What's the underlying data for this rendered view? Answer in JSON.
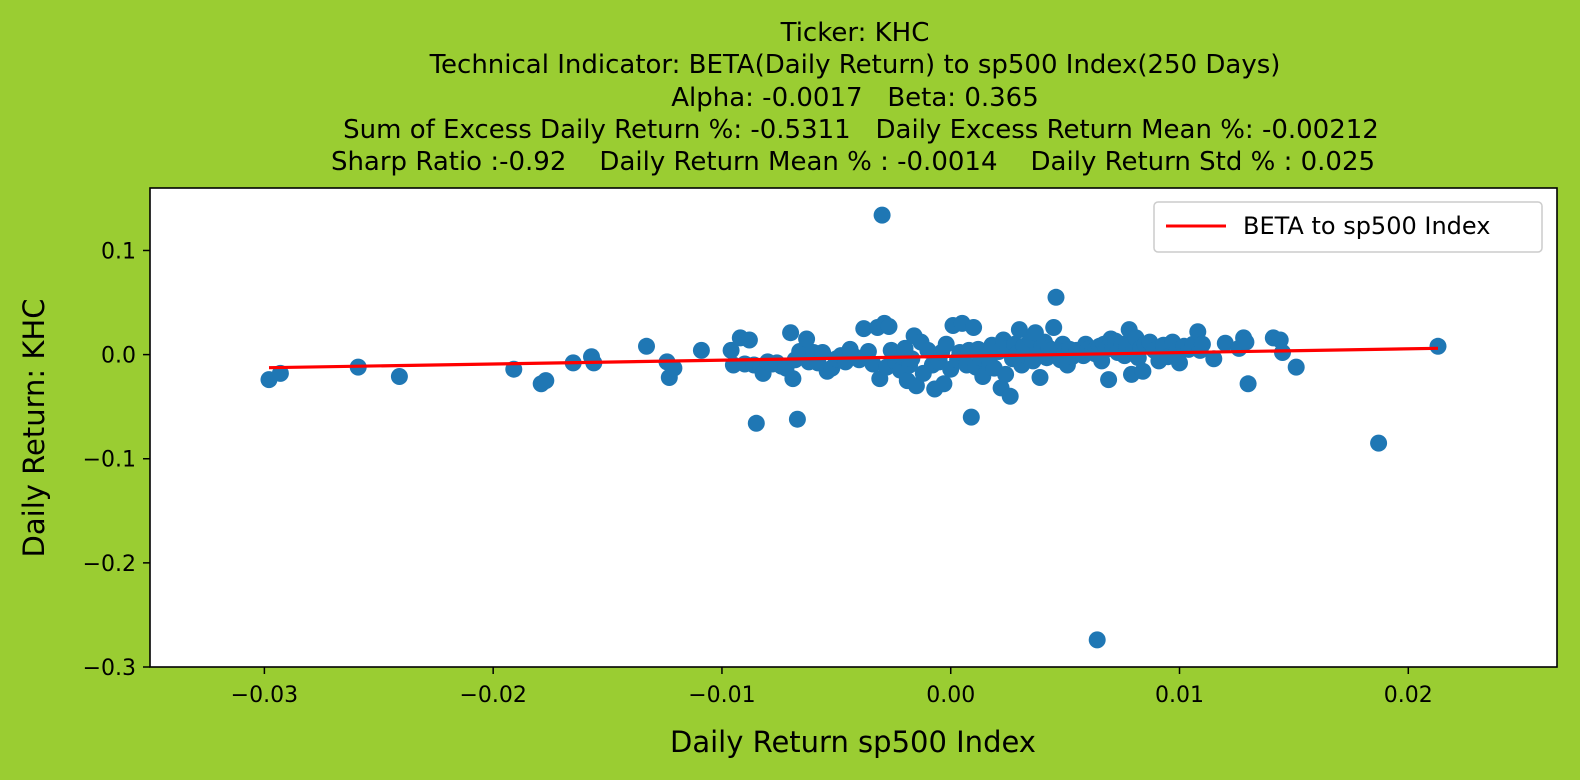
{
  "chart_data": {
    "type": "scatter",
    "title_lines": [
      "Ticker: KHC",
      "Technical Indicator: BETA(Daily Return) to sp500 Index(250 Days)",
      "Alpha: -0.0017   Beta: 0.365",
      "Sum of Excess Daily Return %: -0.5311   Daily Excess Return Mean %: -0.00212",
      "Sharp Ratio :-0.92    Daily Return Mean % : -0.0014    Daily Return Std % : 0.025"
    ],
    "xlabel": "Daily Return sp500 Index",
    "ylabel": "Daily Return: KHC",
    "xlim": [
      -0.035,
      0.0265
    ],
    "ylim": [
      -0.3,
      0.16
    ],
    "x_ticks": [
      -0.03,
      -0.02,
      -0.01,
      0.0,
      0.01,
      0.02
    ],
    "x_tick_labels": [
      "−0.03",
      "−0.02",
      "−0.01",
      "0.00",
      "0.01",
      "0.02"
    ],
    "y_ticks": [
      0.1,
      0.0,
      -0.1,
      -0.2,
      -0.3
    ],
    "y_tick_labels": [
      "0.1",
      "0.0",
      "−0.1",
      "−0.2",
      "−0.3"
    ],
    "grid": false,
    "legend_position": "top-right",
    "colors": {
      "background": "#9acd32",
      "points": "#1f77b4",
      "line": "#ff0000",
      "plot_bg": "#ffffff"
    },
    "series": [
      {
        "type": "scatter",
        "points": [
          [
            -0.0298,
            -0.024
          ],
          [
            -0.0293,
            -0.018
          ],
          [
            -0.0259,
            -0.012
          ],
          [
            -0.0241,
            -0.021
          ],
          [
            -0.0191,
            -0.014
          ],
          [
            -0.0179,
            -0.028
          ],
          [
            -0.0177,
            -0.025
          ],
          [
            -0.0165,
            -0.008
          ],
          [
            -0.0157,
            -0.002
          ],
          [
            -0.0156,
            -0.008
          ],
          [
            -0.0133,
            0.008
          ],
          [
            -0.0124,
            -0.007
          ],
          [
            -0.0123,
            -0.022
          ],
          [
            -0.0121,
            -0.013
          ],
          [
            -0.0109,
            0.004
          ],
          [
            -0.0096,
            0.004
          ],
          [
            -0.0095,
            -0.01
          ],
          [
            -0.0092,
            0.016
          ],
          [
            -0.009,
            -0.009
          ],
          [
            -0.0088,
            0.014
          ],
          [
            -0.0086,
            -0.01
          ],
          [
            -0.0085,
            -0.066
          ],
          [
            -0.0083,
            -0.012
          ],
          [
            -0.0082,
            -0.018
          ],
          [
            -0.008,
            -0.007
          ],
          [
            -0.0078,
            -0.009
          ],
          [
            -0.0076,
            -0.008
          ],
          [
            -0.0074,
            -0.011
          ],
          [
            -0.0072,
            -0.013
          ],
          [
            -0.007,
            0.021
          ],
          [
            -0.0069,
            -0.023
          ],
          [
            -0.0068,
            -0.005
          ],
          [
            -0.0067,
            -0.062
          ],
          [
            -0.0066,
            0.003
          ],
          [
            -0.0064,
            0.004
          ],
          [
            -0.0063,
            0.015
          ],
          [
            -0.0062,
            -0.007
          ],
          [
            -0.006,
            0.002
          ],
          [
            -0.0058,
            -0.008
          ],
          [
            -0.0056,
            0.002
          ],
          [
            -0.0054,
            -0.016
          ],
          [
            -0.0052,
            -0.013
          ],
          [
            -0.005,
            -0.004
          ],
          [
            -0.0048,
            -0.001
          ],
          [
            -0.0046,
            -0.007
          ],
          [
            -0.0044,
            0.005
          ],
          [
            -0.0042,
            -0.002
          ],
          [
            -0.004,
            -0.005
          ],
          [
            -0.0038,
            0.025
          ],
          [
            -0.0036,
            0.003
          ],
          [
            -0.0034,
            -0.009
          ],
          [
            -0.0032,
            0.026
          ],
          [
            -0.0031,
            -0.023
          ],
          [
            -0.003,
            0.134
          ],
          [
            -0.0029,
            0.03
          ],
          [
            -0.0028,
            -0.012
          ],
          [
            -0.0027,
            0.027
          ],
          [
            -0.0026,
            0.004
          ],
          [
            -0.0024,
            -0.007
          ],
          [
            -0.0022,
            -0.015
          ],
          [
            -0.0021,
            -0.002
          ],
          [
            -0.002,
            0.006
          ],
          [
            -0.0019,
            -0.025
          ],
          [
            -0.0018,
            -0.01
          ],
          [
            -0.0017,
            -0.004
          ],
          [
            -0.0016,
            0.018
          ],
          [
            -0.0015,
            -0.03
          ],
          [
            -0.0013,
            0.012
          ],
          [
            -0.0012,
            -0.018
          ],
          [
            -0.001,
            0.004
          ],
          [
            -0.0008,
            -0.01
          ],
          [
            -0.0007,
            -0.033
          ],
          [
            -0.0005,
            -0.007
          ],
          [
            -0.0004,
            0.002
          ],
          [
            -0.0003,
            -0.028
          ],
          [
            -0.0002,
            0.01
          ],
          [
            0.0,
            -0.014
          ],
          [
            0.0001,
            0.028
          ],
          [
            0.0003,
            -0.005
          ],
          [
            0.0004,
            0.002
          ],
          [
            0.0005,
            0.03
          ],
          [
            0.0007,
            -0.01
          ],
          [
            0.0008,
            0.004
          ],
          [
            0.0009,
            -0.06
          ],
          [
            0.001,
            0.026
          ],
          [
            0.0011,
            -0.012
          ],
          [
            0.0012,
            0.005
          ],
          [
            0.0013,
            -0.003
          ],
          [
            0.0014,
            -0.021
          ],
          [
            0.0016,
            0.001
          ],
          [
            0.0017,
            -0.008
          ],
          [
            0.0018,
            0.009
          ],
          [
            0.0019,
            -0.013
          ],
          [
            0.0021,
            0.003
          ],
          [
            0.0022,
            -0.032
          ],
          [
            0.0023,
            0.014
          ],
          [
            0.0024,
            -0.019
          ],
          [
            0.0025,
            0.006
          ],
          [
            0.0026,
            -0.04
          ],
          [
            0.0027,
            -0.004
          ],
          [
            0.0028,
            0.01
          ],
          [
            0.0029,
            0.001
          ],
          [
            0.003,
            0.024
          ],
          [
            0.0031,
            -0.01
          ],
          [
            0.0032,
            0.008
          ],
          [
            0.0033,
            -0.001
          ],
          [
            0.0034,
            0.002
          ],
          [
            0.0035,
            0.015
          ],
          [
            0.0036,
            -0.006
          ],
          [
            0.0037,
            0.021
          ],
          [
            0.0038,
            0.003
          ],
          [
            0.0039,
            -0.022
          ],
          [
            0.004,
            0.008
          ],
          [
            0.0041,
            0.012
          ],
          [
            0.0042,
            -0.003
          ],
          [
            0.0043,
            0.006
          ],
          [
            0.0044,
            0.004
          ],
          [
            0.0045,
            0.026
          ],
          [
            0.0046,
            0.055
          ],
          [
            0.0047,
            0.002
          ],
          [
            0.0048,
            -0.005
          ],
          [
            0.0049,
            0.01
          ],
          [
            0.005,
            0.003
          ],
          [
            0.0051,
            -0.01
          ],
          [
            0.0052,
            0.005
          ],
          [
            0.0053,
            -0.002
          ],
          [
            0.0055,
            0.004
          ],
          [
            0.0057,
            0.002
          ],
          [
            0.0058,
            -0.001
          ],
          [
            0.0059,
            0.01
          ],
          [
            0.006,
            0.005
          ],
          [
            0.0062,
            0.003
          ],
          [
            0.0063,
            0.001
          ],
          [
            0.0064,
            -0.274
          ],
          [
            0.0065,
            0.008
          ],
          [
            0.0066,
            -0.006
          ],
          [
            0.0067,
            0.01
          ],
          [
            0.0068,
            0.005
          ],
          [
            0.0069,
            -0.024
          ],
          [
            0.007,
            0.015
          ],
          [
            0.0071,
            0.006
          ],
          [
            0.0072,
            0.013
          ],
          [
            0.0073,
            0.002
          ],
          [
            0.0075,
            0.01
          ],
          [
            0.0076,
            -0.001
          ],
          [
            0.0077,
            0.008
          ],
          [
            0.0078,
            0.024
          ],
          [
            0.0079,
            -0.019
          ],
          [
            0.008,
            0.004
          ],
          [
            0.0081,
            0.016
          ],
          [
            0.0082,
            -0.003
          ],
          [
            0.0083,
            0.006
          ],
          [
            0.0084,
            -0.016
          ],
          [
            0.0085,
            0.01
          ],
          [
            0.0087,
            0.012
          ],
          [
            0.0089,
            0.004
          ],
          [
            0.0091,
            -0.006
          ],
          [
            0.0093,
            0.009
          ],
          [
            0.0095,
            -0.002
          ],
          [
            0.0097,
            0.012
          ],
          [
            0.0099,
            0.004
          ],
          [
            0.01,
            -0.008
          ],
          [
            0.0102,
            0.008
          ],
          [
            0.0104,
            0.005
          ],
          [
            0.0106,
            0.01
          ],
          [
            0.0108,
            0.022
          ],
          [
            0.0109,
            0.004
          ],
          [
            0.011,
            0.01
          ],
          [
            0.0115,
            -0.004
          ],
          [
            0.012,
            0.011
          ],
          [
            0.0126,
            0.006
          ],
          [
            0.0128,
            0.016
          ],
          [
            0.0129,
            0.012
          ],
          [
            0.013,
            -0.028
          ],
          [
            0.0141,
            0.016
          ],
          [
            0.0144,
            0.014
          ],
          [
            0.0145,
            0.002
          ],
          [
            0.0151,
            -0.012
          ],
          [
            0.0187,
            -0.085
          ],
          [
            0.0213,
            0.008
          ]
        ]
      },
      {
        "type": "line",
        "name": "BETA to sp500 Index",
        "points": [
          [
            -0.0298,
            -0.0126
          ],
          [
            0.0213,
            0.0061
          ]
        ]
      }
    ]
  }
}
